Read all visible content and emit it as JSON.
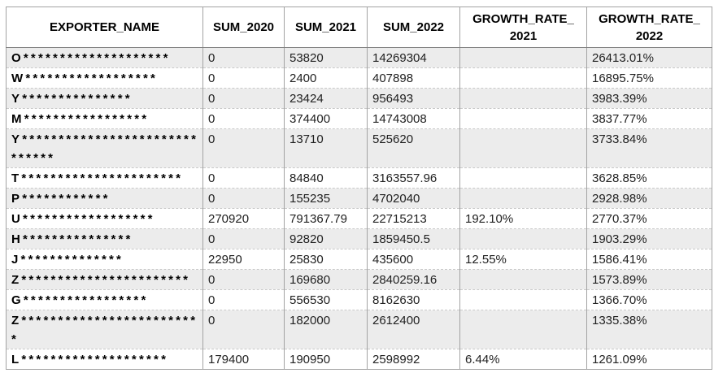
{
  "table": {
    "columns": [
      {
        "label": "EXPORTER_NAME"
      },
      {
        "label": "SUM_2020"
      },
      {
        "label": "SUM_2021"
      },
      {
        "label": "SUM_2022"
      },
      {
        "label_line1": "GROWTH_RATE_",
        "label_line2": "2021"
      },
      {
        "label_line1": "GROWTH_RATE_",
        "label_line2": "2022"
      }
    ],
    "rows": [
      [
        "O********************",
        "0",
        "53820",
        "14269304",
        "",
        "26413.01%"
      ],
      [
        "W******************",
        "0",
        "2400",
        "407898",
        "",
        "16895.75%"
      ],
      [
        "Y***************",
        "0",
        "23424",
        "956493",
        "",
        "3983.39%"
      ],
      [
        "M*****************",
        "0",
        "374400",
        "14743008",
        "",
        "3837.77%"
      ],
      [
        "Y******************************",
        "0",
        "13710",
        "525620",
        "",
        "3733.84%"
      ],
      [
        "T**********************",
        "0",
        "84840",
        "3163557.96",
        "",
        "3628.85%"
      ],
      [
        "P************",
        "0",
        "155235",
        "4702040",
        "",
        "2928.98%"
      ],
      [
        "U******************",
        "270920",
        "791367.79",
        "22715213",
        "192.10%",
        "2770.37%"
      ],
      [
        "H***************",
        "0",
        "92820",
        "1859450.5",
        "",
        "1903.29%"
      ],
      [
        "J**************",
        "22950",
        "25830",
        "435600",
        "12.55%",
        "1586.41%"
      ],
      [
        "Z***********************",
        "0",
        "169680",
        "2840259.16",
        "",
        "1573.89%"
      ],
      [
        "G*****************",
        "0",
        "556530",
        "8162630",
        "",
        "1366.70%"
      ],
      [
        "Z*************************",
        "0",
        "182000",
        "2612400",
        "",
        "1335.38%"
      ],
      [
        "L********************",
        "179400",
        "190950",
        "2598992",
        "6.44%",
        "1261.09%"
      ]
    ]
  },
  "colors": {
    "band_row_bg": "#ececec",
    "grid_line": "#a3a3a3",
    "grid_dashed": "#c9c9c9",
    "header_divider": "#7f7f7f",
    "text_color": "#1a1a1a"
  }
}
